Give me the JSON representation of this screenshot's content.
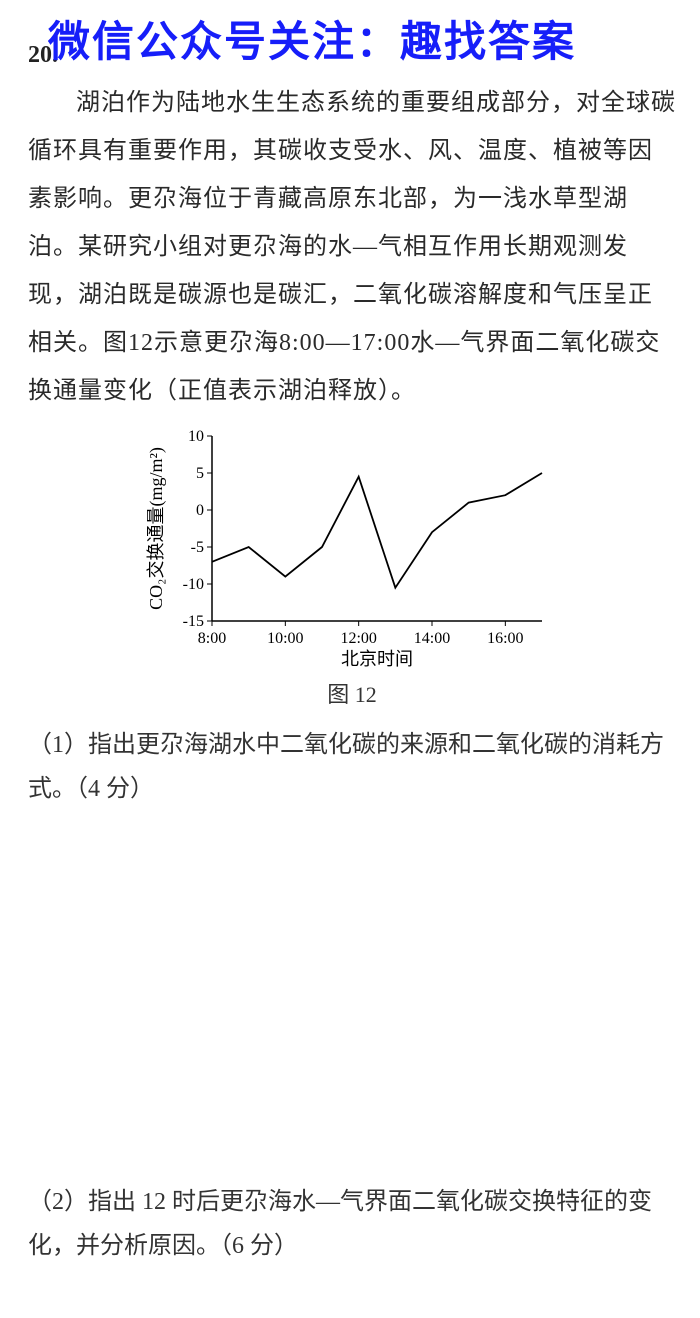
{
  "banner": "微信公众号关注：趣找答案",
  "question_number": "20.",
  "paragraph": "湖泊作为陆地水生生态系统的重要组成部分，对全球碳循环具有重要作用，其碳收支受水、风、温度、植被等因素影响。更尕海位于青藏高原东北部，为一浅水草型湖泊。某研究小组对更尕海的水—气相互作用长期观测发现，湖泊既是碳源也是碳汇，二氧化碳溶解度和气压呈正相关。图12示意更尕海8:00—17:00水—气界面二氧化碳交换通量变化（正值表示湖泊释放）。",
  "chart": {
    "type": "line",
    "y_label": "CO₂交换通量(mg/m²)",
    "x_label": "北京时间",
    "ylim": [
      -15,
      10
    ],
    "ytick_step": 5,
    "yticks": [
      -15,
      -10,
      -5,
      0,
      5,
      10
    ],
    "x_categories": [
      "8:00",
      "10:00",
      "12:00",
      "14:00",
      "16:00"
    ],
    "times": [
      "8:00",
      "9:00",
      "10:00",
      "11:00",
      "12:00",
      "13:00",
      "14:00",
      "15:00",
      "16:00",
      "17:00"
    ],
    "values": [
      -7,
      -5,
      -9,
      -5,
      4.5,
      -10.5,
      -3,
      1,
      2,
      5
    ],
    "line_color": "#000000",
    "line_width": 1.8,
    "axis_color": "#000000",
    "background_color": "#ffffff",
    "font_size_axis_label": 18,
    "font_size_tick": 16
  },
  "caption": "图 12",
  "sub1": "（1）指出更尕海湖水中二氧化碳的来源和二氧化碳的消耗方式。（4 分）",
  "sub2": "（2）指出 12 时后更尕海水—气界面二氧化碳交换特征的变化，并分析原因。（6 分）"
}
